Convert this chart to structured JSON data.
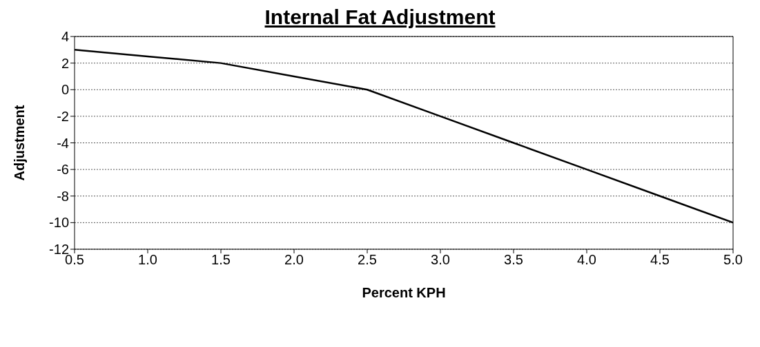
{
  "chart_data": {
    "type": "line",
    "title": "Internal Fat Adjustment",
    "xlabel": "Percent KPH",
    "ylabel": "Adjustment",
    "x": [
      0.5,
      1.0,
      1.5,
      2.0,
      2.5,
      3.0,
      3.5,
      4.0,
      4.5,
      5.0
    ],
    "series": [
      {
        "color": "#000000",
        "values": [
          3,
          2.5,
          2,
          1,
          0,
          -2,
          -4,
          -6,
          -8,
          -10
        ]
      }
    ],
    "xlim": [
      0.5,
      5.0
    ],
    "xticks": [
      {
        "value": 0.5,
        "label": "0.5"
      },
      {
        "value": 1,
        "label": "1.0"
      },
      {
        "value": 1.5,
        "label": "1.5"
      },
      {
        "value": 2,
        "label": "2.0"
      },
      {
        "value": 2.5,
        "label": "2.5"
      },
      {
        "value": 3,
        "label": "3.0"
      },
      {
        "value": 3.5,
        "label": "3.5"
      },
      {
        "value": 4,
        "label": "4.0"
      },
      {
        "value": 4.5,
        "label": "4.5"
      },
      {
        "value": 5,
        "label": "5.0"
      }
    ],
    "ylim": [
      -12,
      4
    ],
    "yticks": [
      -12,
      -10,
      -8,
      -6,
      -4,
      -2,
      0,
      2,
      4
    ],
    "grid": "y",
    "legend": false,
    "marker": "none",
    "line_style": "solid"
  }
}
